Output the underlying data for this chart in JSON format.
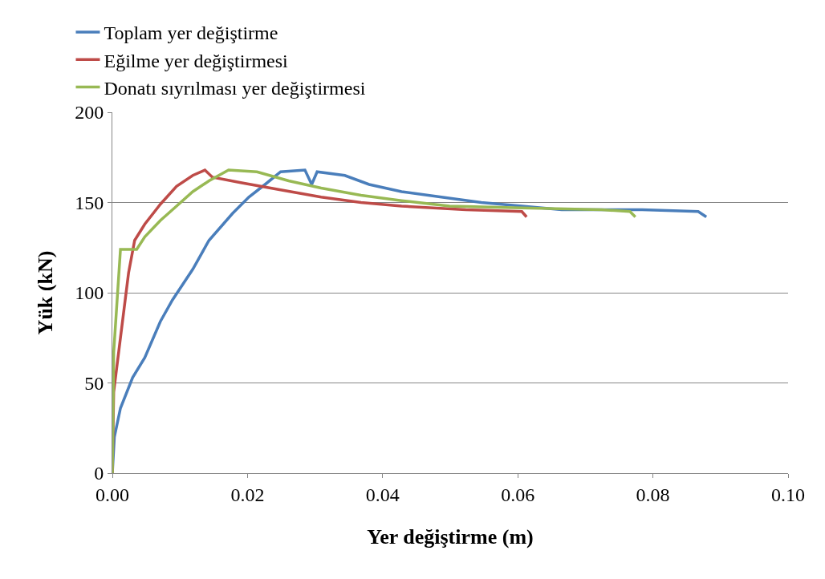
{
  "chart_data": {
    "type": "line",
    "xlabel": "Yer değiştirme (m)",
    "ylabel": "Yük (kN)",
    "xlim": [
      0,
      0.1
    ],
    "xticks": [
      {
        "value": 0,
        "label": "0.00"
      },
      {
        "value": 0.02,
        "label": "0.02"
      },
      {
        "value": 0.04,
        "label": "0.04"
      },
      {
        "value": 0.06,
        "label": "0.06"
      },
      {
        "value": 0.08,
        "label": "0.08"
      },
      {
        "value": 0.1,
        "label": "0.10"
      }
    ],
    "ylim": [
      0,
      200
    ],
    "yticks": [
      0,
      50,
      100,
      150,
      200
    ],
    "grid": "y",
    "legend": "top left",
    "marker": "none",
    "line_style": "solid",
    "series": [
      {
        "name": "Toplam yer değiştirme",
        "color": "#4a7ebb",
        "x": [
          0,
          0.0003,
          0.0012,
          0.003,
          0.0048,
          0.0071,
          0.0089,
          0.0119,
          0.0143,
          0.0178,
          0.0202,
          0.0226,
          0.0249,
          0.0285,
          0.0295,
          0.0303,
          0.0344,
          0.038,
          0.0428,
          0.0487,
          0.0546,
          0.0606,
          0.0665,
          0.0784,
          0.0867,
          0.0879
        ],
        "values": [
          0,
          20,
          36,
          53,
          64,
          84,
          96,
          113,
          129,
          144,
          153,
          160,
          167,
          168,
          160,
          167,
          165,
          160,
          156,
          153,
          150,
          148,
          146,
          146,
          145,
          142
        ]
      },
      {
        "name": "Eğilme yer değiştirmesi",
        "color": "#be4b48",
        "x": [
          0,
          0.0002,
          0.0012,
          0.0024,
          0.0033,
          0.0048,
          0.0071,
          0.0095,
          0.0119,
          0.0137,
          0.0148,
          0.019,
          0.0249,
          0.0309,
          0.0368,
          0.0428,
          0.0523,
          0.0606,
          0.0613
        ],
        "values": [
          0,
          45,
          75,
          111,
          129,
          138,
          149,
          159,
          165,
          168,
          164,
          161,
          157,
          153,
          150,
          148,
          146,
          145,
          142
        ]
      },
      {
        "name": "Donatı sıyrılması yer değiştirmesi",
        "color": "#98b954",
        "x": [
          0,
          0.0002,
          0.0012,
          0.0036,
          0.0048,
          0.0071,
          0.0095,
          0.0119,
          0.0143,
          0.0172,
          0.0214,
          0.0261,
          0.0309,
          0.0368,
          0.0428,
          0.0499,
          0.0606,
          0.0724,
          0.0766,
          0.0774
        ],
        "values": [
          0,
          67,
          124,
          124,
          131,
          140,
          148,
          156,
          162,
          168,
          167,
          162,
          158,
          154,
          151,
          148,
          147,
          146,
          145,
          142
        ]
      }
    ]
  }
}
